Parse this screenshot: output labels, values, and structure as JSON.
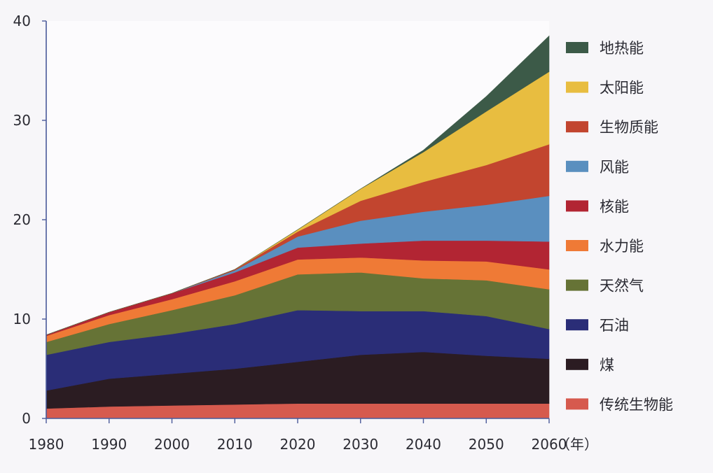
{
  "chart_data": {
    "type": "area",
    "stacked": true,
    "x": [
      1980,
      1990,
      2000,
      2010,
      2020,
      2030,
      2040,
      2050,
      2060
    ],
    "xlim": [
      1980,
      2060
    ],
    "ylim": [
      0,
      40
    ],
    "x_ticks": [
      "1980",
      "1990",
      "2000",
      "2010",
      "2020",
      "2030",
      "2040",
      "2050",
      "2060"
    ],
    "y_ticks": [
      "0",
      "10",
      "20",
      "30",
      "40"
    ],
    "x_unit": "（年）",
    "grid": false,
    "legend_position": "right",
    "series": [
      {
        "name": "传统生物能",
        "color": "#d65a4e",
        "values": [
          1.0,
          1.2,
          1.3,
          1.4,
          1.5,
          1.5,
          1.5,
          1.5,
          1.5
        ]
      },
      {
        "name": "煤",
        "color": "#2b1c22",
        "values": [
          1.8,
          2.8,
          3.2,
          3.6,
          4.2,
          4.9,
          5.2,
          4.8,
          4.5
        ]
      },
      {
        "name": "石油",
        "color": "#2a2d77",
        "values": [
          3.6,
          3.7,
          4.0,
          4.5,
          5.2,
          4.4,
          4.1,
          4.0,
          3.0
        ]
      },
      {
        "name": "天然气",
        "color": "#667336",
        "values": [
          1.3,
          1.8,
          2.4,
          2.9,
          3.6,
          3.9,
          3.3,
          3.6,
          4.0
        ]
      },
      {
        "name": "水力能",
        "color": "#ef7a36",
        "values": [
          0.6,
          0.9,
          1.1,
          1.4,
          1.5,
          1.5,
          1.8,
          1.9,
          2.0
        ]
      },
      {
        "name": "核能",
        "color": "#b22533",
        "values": [
          0.1,
          0.3,
          0.6,
          0.9,
          1.2,
          1.4,
          2.0,
          2.1,
          2.8
        ]
      },
      {
        "name": "风能",
        "color": "#5a8fbf",
        "values": [
          0.0,
          0.0,
          0.0,
          0.2,
          1.1,
          2.3,
          2.9,
          3.6,
          4.6
        ]
      },
      {
        "name": "生物质能",
        "color": "#c2452f",
        "values": [
          0.0,
          0.0,
          0.0,
          0.1,
          0.5,
          2.0,
          3.0,
          4.0,
          5.2
        ]
      },
      {
        "name": "太阳能",
        "color": "#e8bd40",
        "values": [
          0.0,
          0.0,
          0.0,
          0.0,
          0.2,
          1.2,
          3.0,
          5.4,
          7.3
        ]
      },
      {
        "name": "地热能",
        "color": "#3c5a48",
        "values": [
          0.0,
          0.0,
          0.0,
          0.0,
          0.0,
          0.0,
          0.2,
          1.5,
          3.6
        ]
      }
    ]
  }
}
